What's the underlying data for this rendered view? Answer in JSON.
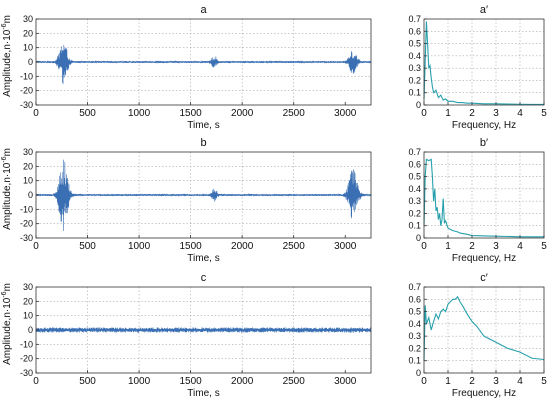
{
  "colors": {
    "waveform": "#3a6fb3",
    "spectrum": "#27a0ad",
    "grid": "#a9a9a9",
    "frame": "#333333"
  },
  "labels": {
    "time_xlabel": "Time, s",
    "freq_xlabel": "Frequency, Hz",
    "amp_ylabel": "Amplitude,n·10",
    "amp_ylabel_exp": "-6",
    "amp_ylabel_unit": "m"
  },
  "chart_data": [
    {
      "id": "a",
      "type": "line",
      "title": "a",
      "subtitle": "",
      "xlabel": "Time, s",
      "ylabel": "Amplitude,n·10⁻⁶m",
      "xlim": [
        0,
        3250
      ],
      "ylim": [
        -30,
        30
      ],
      "xticks": [
        0,
        500,
        1000,
        1500,
        2000,
        2500,
        3000
      ],
      "yticks": [
        -30,
        -20,
        -10,
        0,
        10,
        20,
        30
      ],
      "grid": true,
      "signal": {
        "noise": 0.7,
        "bursts": [
          {
            "center": 265,
            "width": 45,
            "amplitude": 15
          },
          {
            "center": 1730,
            "width": 30,
            "amplitude": 4
          },
          {
            "center": 3075,
            "width": 45,
            "amplitude": 8
          }
        ]
      }
    },
    {
      "id": "a2",
      "type": "line",
      "title": "a′",
      "xlabel": "Frequency, Hz",
      "ylabel": "",
      "xlim": [
        0,
        5
      ],
      "ylim": [
        0,
        0.7
      ],
      "xticks": [
        0,
        1,
        2,
        3,
        4,
        5
      ],
      "yticks": [
        0,
        0.1,
        0.2,
        0.3,
        0.4,
        0.5,
        0.6,
        0.7
      ],
      "grid": true,
      "x": [
        0,
        0.05,
        0.1,
        0.15,
        0.2,
        0.25,
        0.3,
        0.35,
        0.4,
        0.5,
        0.6,
        0.7,
        0.8,
        0.9,
        1.0,
        1.2,
        1.4,
        1.6,
        1.8,
        2.0,
        2.5,
        3.0,
        3.5,
        4.0,
        4.5,
        5.0
      ],
      "y": [
        0.05,
        0.35,
        0.68,
        0.5,
        0.3,
        0.32,
        0.22,
        0.15,
        0.1,
        0.12,
        0.06,
        0.08,
        0.04,
        0.05,
        0.03,
        0.03,
        0.02,
        0.02,
        0.015,
        0.015,
        0.01,
        0.01,
        0.008,
        0.006,
        0.005,
        0.005
      ]
    },
    {
      "id": "b",
      "type": "line",
      "title": "b",
      "xlabel": "Time, s",
      "ylabel": "Amplitude,n·10⁻⁶m",
      "xlim": [
        0,
        3250
      ],
      "ylim": [
        -30,
        30
      ],
      "xticks": [
        0,
        500,
        1000,
        1500,
        2000,
        2500,
        3000
      ],
      "yticks": [
        -30,
        -20,
        -10,
        0,
        10,
        20,
        30
      ],
      "grid": true,
      "signal": {
        "noise": 0.7,
        "bursts": [
          {
            "center": 265,
            "width": 50,
            "amplitude": 25
          },
          {
            "center": 1730,
            "width": 30,
            "amplitude": 4
          },
          {
            "center": 3075,
            "width": 50,
            "amplitude": 18
          }
        ]
      }
    },
    {
      "id": "b2",
      "type": "line",
      "title": "b′",
      "xlabel": "Frequency, Hz",
      "ylabel": "",
      "xlim": [
        0,
        5
      ],
      "ylim": [
        0,
        0.7
      ],
      "xticks": [
        0,
        1,
        2,
        3,
        4,
        5
      ],
      "yticks": [
        0,
        0.1,
        0.2,
        0.3,
        0.4,
        0.5,
        0.6,
        0.7
      ],
      "grid": true,
      "x": [
        0,
        0.05,
        0.1,
        0.2,
        0.3,
        0.35,
        0.4,
        0.45,
        0.5,
        0.55,
        0.6,
        0.65,
        0.7,
        0.75,
        0.8,
        0.85,
        0.9,
        1.0,
        1.2,
        1.4,
        1.5,
        1.8,
        2.0,
        3.0,
        4.0,
        5.0
      ],
      "y": [
        0.1,
        0.5,
        0.64,
        0.63,
        0.64,
        0.5,
        0.3,
        0.4,
        0.22,
        0.25,
        0.15,
        0.2,
        0.1,
        0.15,
        0.32,
        0.12,
        0.14,
        0.08,
        0.06,
        0.05,
        0.04,
        0.03,
        0.02,
        0.015,
        0.01,
        0.01
      ]
    },
    {
      "id": "c",
      "type": "line",
      "title": "c",
      "xlabel": "Time, s",
      "ylabel": "Amplitude,n·10⁻⁶m",
      "xlim": [
        0,
        3250
      ],
      "ylim": [
        -30,
        30
      ],
      "xticks": [
        0,
        500,
        1000,
        1500,
        2000,
        2500,
        3000
      ],
      "yticks": [
        -30,
        -20,
        -10,
        0,
        10,
        20,
        30
      ],
      "grid": true,
      "signal": {
        "noise": 1.8,
        "bursts": []
      }
    },
    {
      "id": "c2",
      "type": "line",
      "title": "c′",
      "xlabel": "Frequency, Hz",
      "ylabel": "",
      "xlim": [
        0,
        5
      ],
      "ylim": [
        0,
        0.7
      ],
      "xticks": [
        0,
        1,
        2,
        3,
        4,
        5
      ],
      "yticks": [
        0,
        0.1,
        0.2,
        0.3,
        0.4,
        0.5,
        0.6,
        0.7
      ],
      "grid": true,
      "x": [
        0,
        0.05,
        0.1,
        0.2,
        0.3,
        0.4,
        0.5,
        0.6,
        0.7,
        0.8,
        0.9,
        1.0,
        1.1,
        1.2,
        1.3,
        1.4,
        1.5,
        1.6,
        1.8,
        2.0,
        2.2,
        2.5,
        3.0,
        3.5,
        4.0,
        4.5,
        5.0
      ],
      "y": [
        0.1,
        0.55,
        0.4,
        0.45,
        0.35,
        0.42,
        0.48,
        0.44,
        0.5,
        0.52,
        0.5,
        0.56,
        0.58,
        0.6,
        0.6,
        0.62,
        0.58,
        0.55,
        0.48,
        0.42,
        0.38,
        0.3,
        0.25,
        0.2,
        0.17,
        0.12,
        0.11
      ]
    }
  ]
}
